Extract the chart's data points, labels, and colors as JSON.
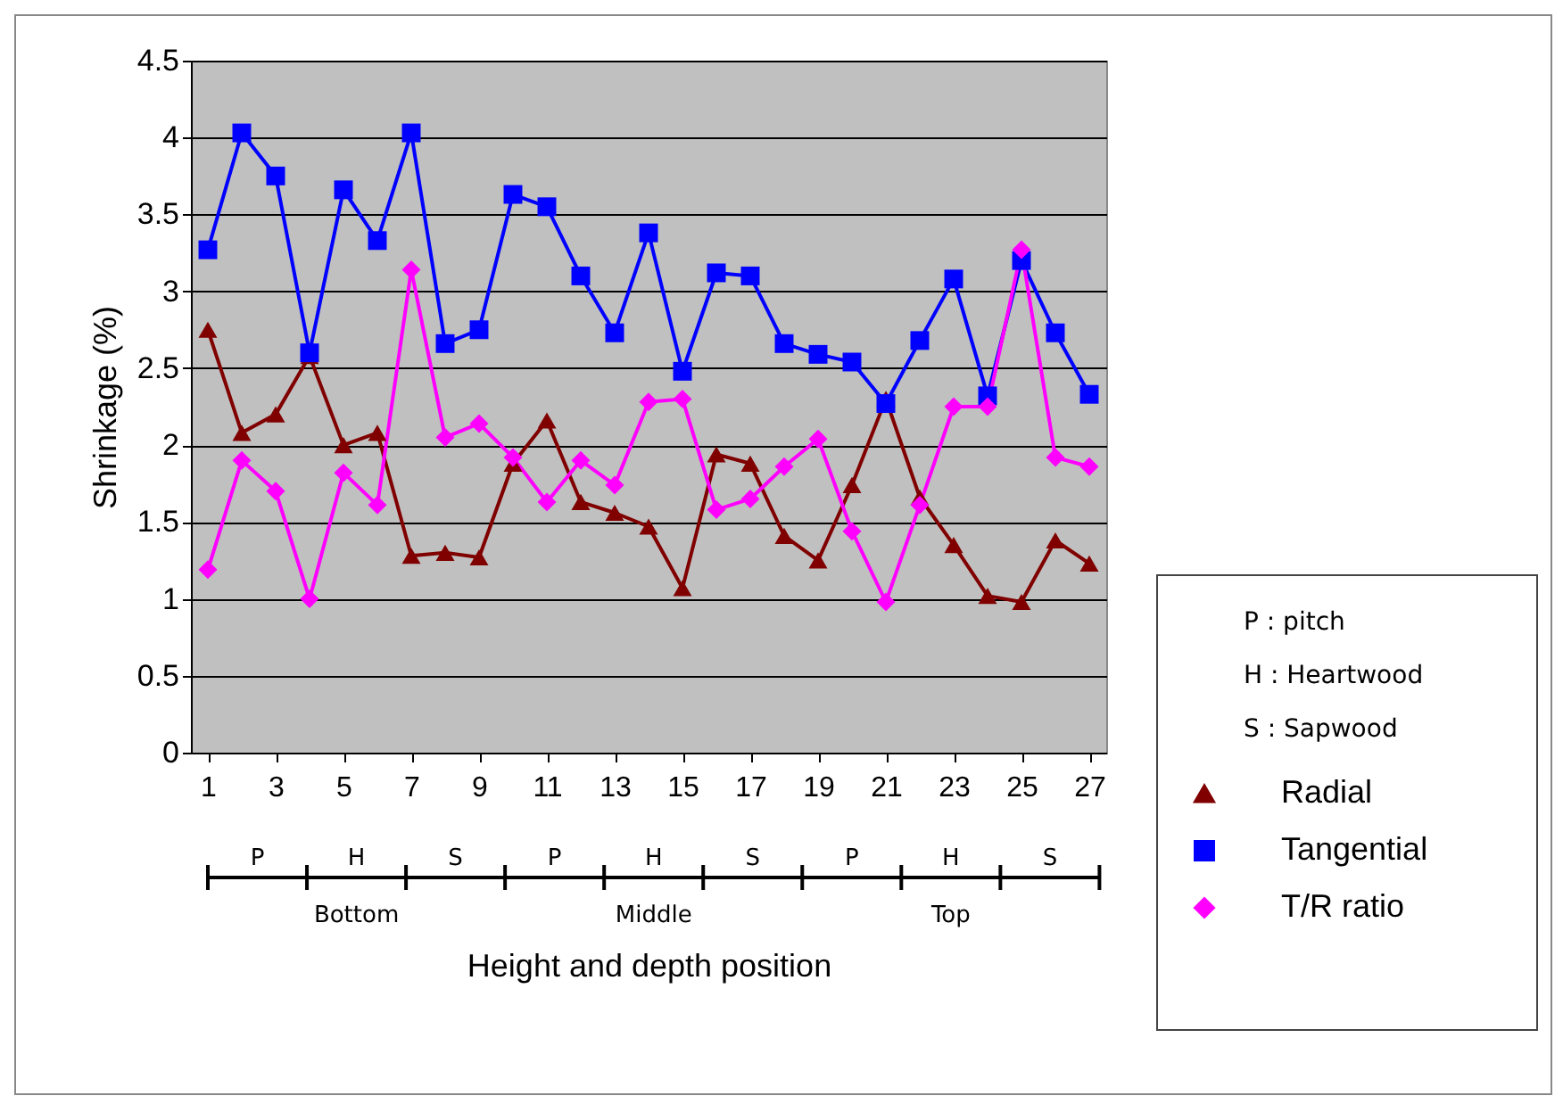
{
  "chart_data": {
    "type": "line",
    "xlabel": "Height and depth position",
    "ylabel": "Shrinkage (%)",
    "x": [
      1,
      2,
      3,
      4,
      5,
      6,
      7,
      8,
      9,
      10,
      11,
      12,
      13,
      14,
      15,
      16,
      17,
      18,
      19,
      20,
      21,
      22,
      23,
      24,
      25,
      26,
      27
    ],
    "xlim": [
      0.5,
      27.5
    ],
    "xticks": [
      1,
      3,
      5,
      7,
      9,
      11,
      13,
      15,
      17,
      19,
      21,
      23,
      25,
      27
    ],
    "ylim": [
      0,
      4.5
    ],
    "yticks": [
      0,
      0.5,
      1,
      1.5,
      2,
      2.5,
      3,
      3.5,
      4,
      4.5
    ],
    "grid": "y",
    "legend": "right",
    "line_style": "solid",
    "series": [
      {
        "name": "Radial",
        "color": "#800000",
        "marker": "triangle",
        "values": [
          2.75,
          2.08,
          2.2,
          2.58,
          2.0,
          2.08,
          1.28,
          1.3,
          1.27,
          1.88,
          2.16,
          1.63,
          1.56,
          1.47,
          1.07,
          1.94,
          1.88,
          1.41,
          1.25,
          1.74,
          2.3,
          1.66,
          1.35,
          1.02,
          0.98,
          1.38,
          1.23
        ]
      },
      {
        "name": "Tangential",
        "color": "#0000ff",
        "marker": "square",
        "values": [
          3.27,
          4.03,
          3.75,
          2.6,
          3.66,
          3.33,
          4.03,
          2.66,
          2.75,
          3.63,
          3.55,
          3.1,
          2.73,
          3.38,
          2.48,
          3.12,
          3.1,
          2.66,
          2.59,
          2.54,
          2.27,
          2.68,
          3.08,
          2.32,
          3.2,
          2.73,
          2.33
        ]
      },
      {
        "name": "T/R ratio",
        "color": "#ff00ff",
        "marker": "diamond",
        "values": [
          1.19,
          1.9,
          1.7,
          1.0,
          1.82,
          1.61,
          3.14,
          2.05,
          2.14,
          1.92,
          1.63,
          1.9,
          1.74,
          2.28,
          2.3,
          1.58,
          1.65,
          1.86,
          2.04,
          1.44,
          0.98,
          1.61,
          2.25,
          2.25,
          3.27,
          1.92,
          1.86
        ]
      }
    ],
    "annotations": [
      "P",
      "H",
      "S",
      "P",
      "H",
      "S",
      "P",
      "H",
      "S",
      "Bottom",
      "Middle",
      "Top",
      "P : pitch",
      "H : Heartwood",
      "S : Sapwood"
    ]
  }
}
